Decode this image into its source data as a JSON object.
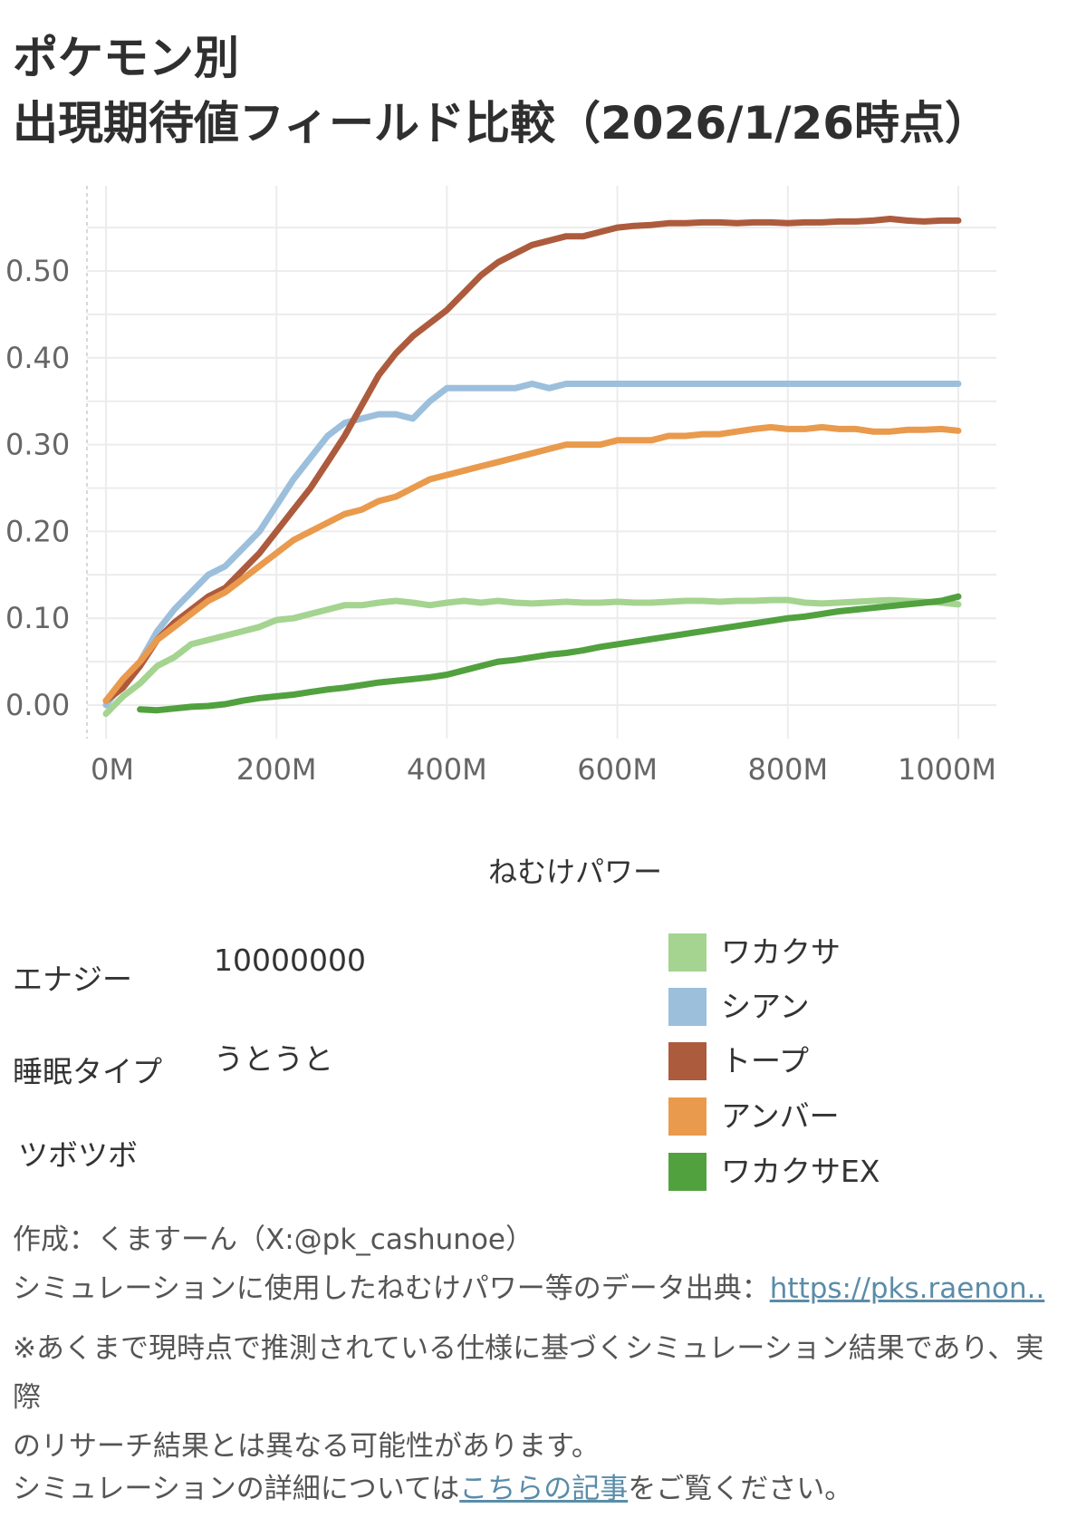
{
  "title": {
    "line1": "ポケモン別",
    "line2": "出現期待値フィールド比較（2026/1/26時点）"
  },
  "chart_data": {
    "type": "line",
    "title": "ポケモン別 出現期待値フィールド比較（2026/1/26時点）",
    "xlabel": "ねむけパワー",
    "ylabel": "",
    "xlim": [
      0,
      1000
    ],
    "ylim": [
      -0.03,
      0.58
    ],
    "x_unit": "M",
    "x_ticks": [
      "0M",
      "200M",
      "400M",
      "600M",
      "800M",
      "1000M"
    ],
    "y_ticks": [
      "0.00",
      "0.10",
      "0.20",
      "0.30",
      "0.40",
      "0.50"
    ],
    "grid": true,
    "series": [
      {
        "name": "ワカクサ",
        "color": "#a4d490",
        "x": [
          0,
          20,
          40,
          60,
          80,
          100,
          120,
          140,
          160,
          180,
          200,
          220,
          240,
          260,
          280,
          300,
          320,
          340,
          360,
          380,
          400,
          420,
          440,
          460,
          480,
          500,
          520,
          540,
          560,
          580,
          600,
          620,
          640,
          660,
          680,
          700,
          720,
          740,
          760,
          780,
          800,
          820,
          840,
          860,
          880,
          900,
          920,
          940,
          960,
          980,
          1000
        ],
        "y": [
          -0.01,
          0.01,
          0.025,
          0.045,
          0.055,
          0.07,
          0.075,
          0.08,
          0.085,
          0.09,
          0.098,
          0.1,
          0.105,
          0.11,
          0.115,
          0.115,
          0.118,
          0.12,
          0.118,
          0.115,
          0.118,
          0.12,
          0.118,
          0.12,
          0.118,
          0.117,
          0.118,
          0.119,
          0.118,
          0.118,
          0.119,
          0.118,
          0.118,
          0.119,
          0.12,
          0.12,
          0.119,
          0.12,
          0.12,
          0.121,
          0.121,
          0.118,
          0.117,
          0.118,
          0.119,
          0.12,
          0.121,
          0.12,
          0.119,
          0.118,
          0.116
        ]
      },
      {
        "name": "シアン",
        "color": "#9cbfdc",
        "x": [
          0,
          20,
          40,
          60,
          80,
          100,
          120,
          140,
          160,
          180,
          200,
          220,
          240,
          260,
          280,
          300,
          320,
          340,
          360,
          380,
          400,
          420,
          440,
          460,
          480,
          500,
          520,
          540,
          560,
          580,
          600,
          620,
          640,
          660,
          680,
          700,
          720,
          740,
          760,
          780,
          800,
          820,
          840,
          860,
          880,
          900,
          920,
          940,
          960,
          980,
          1000
        ],
        "y": [
          0.0,
          0.025,
          0.05,
          0.085,
          0.11,
          0.13,
          0.15,
          0.16,
          0.18,
          0.2,
          0.23,
          0.26,
          0.285,
          0.31,
          0.325,
          0.33,
          0.335,
          0.335,
          0.33,
          0.35,
          0.365,
          0.365,
          0.365,
          0.365,
          0.365,
          0.37,
          0.365,
          0.37,
          0.37,
          0.37,
          0.37,
          0.37,
          0.37,
          0.37,
          0.37,
          0.37,
          0.37,
          0.37,
          0.37,
          0.37,
          0.37,
          0.37,
          0.37,
          0.37,
          0.37,
          0.37,
          0.37,
          0.37,
          0.37,
          0.37,
          0.37
        ]
      },
      {
        "name": "トープ",
        "color": "#ad5b3d",
        "x": [
          0,
          20,
          40,
          60,
          80,
          100,
          120,
          140,
          160,
          180,
          200,
          220,
          240,
          260,
          280,
          300,
          320,
          340,
          360,
          380,
          400,
          420,
          440,
          460,
          480,
          500,
          520,
          540,
          560,
          580,
          600,
          620,
          640,
          660,
          680,
          700,
          720,
          740,
          760,
          780,
          800,
          820,
          840,
          860,
          880,
          900,
          920,
          940,
          960,
          980,
          1000
        ],
        "y": [
          0.005,
          0.02,
          0.045,
          0.075,
          0.095,
          0.11,
          0.125,
          0.135,
          0.155,
          0.175,
          0.2,
          0.225,
          0.25,
          0.28,
          0.31,
          0.345,
          0.38,
          0.405,
          0.425,
          0.44,
          0.455,
          0.475,
          0.495,
          0.51,
          0.52,
          0.53,
          0.535,
          0.54,
          0.54,
          0.545,
          0.55,
          0.552,
          0.553,
          0.555,
          0.555,
          0.556,
          0.556,
          0.555,
          0.556,
          0.556,
          0.555,
          0.556,
          0.556,
          0.557,
          0.557,
          0.558,
          0.56,
          0.558,
          0.557,
          0.558,
          0.558
        ]
      },
      {
        "name": "アンバー",
        "color": "#e99a4c",
        "x": [
          0,
          20,
          40,
          60,
          80,
          100,
          120,
          140,
          160,
          180,
          200,
          220,
          240,
          260,
          280,
          300,
          320,
          340,
          360,
          380,
          400,
          420,
          440,
          460,
          480,
          500,
          520,
          540,
          560,
          580,
          600,
          620,
          640,
          660,
          680,
          700,
          720,
          740,
          760,
          780,
          800,
          820,
          840,
          860,
          880,
          900,
          920,
          940,
          960,
          980,
          1000
        ],
        "y": [
          0.005,
          0.03,
          0.05,
          0.075,
          0.09,
          0.105,
          0.12,
          0.13,
          0.145,
          0.16,
          0.175,
          0.19,
          0.2,
          0.21,
          0.22,
          0.225,
          0.235,
          0.24,
          0.25,
          0.26,
          0.265,
          0.27,
          0.275,
          0.28,
          0.285,
          0.29,
          0.295,
          0.3,
          0.3,
          0.3,
          0.305,
          0.305,
          0.305,
          0.31,
          0.31,
          0.312,
          0.312,
          0.315,
          0.318,
          0.32,
          0.318,
          0.318,
          0.32,
          0.318,
          0.318,
          0.315,
          0.315,
          0.317,
          0.317,
          0.318,
          0.316
        ]
      },
      {
        "name": "ワカクサEX",
        "color": "#51a13f",
        "x": [
          40,
          60,
          80,
          100,
          120,
          140,
          160,
          180,
          200,
          220,
          240,
          260,
          280,
          300,
          320,
          340,
          360,
          380,
          400,
          420,
          440,
          460,
          480,
          500,
          520,
          540,
          560,
          580,
          600,
          620,
          640,
          660,
          680,
          700,
          720,
          740,
          760,
          780,
          800,
          820,
          840,
          860,
          880,
          900,
          920,
          940,
          960,
          980,
          1000
        ],
        "y": [
          -0.005,
          -0.006,
          -0.004,
          -0.002,
          -0.001,
          0.001,
          0.005,
          0.008,
          0.01,
          0.012,
          0.015,
          0.018,
          0.02,
          0.023,
          0.026,
          0.028,
          0.03,
          0.032,
          0.035,
          0.04,
          0.045,
          0.05,
          0.052,
          0.055,
          0.058,
          0.06,
          0.063,
          0.067,
          0.07,
          0.073,
          0.076,
          0.079,
          0.082,
          0.085,
          0.088,
          0.091,
          0.094,
          0.097,
          0.1,
          0.102,
          0.105,
          0.108,
          0.11,
          0.112,
          0.114,
          0.116,
          0.118,
          0.12,
          0.125
        ]
      }
    ]
  },
  "params": {
    "energy_label": "エナジー",
    "energy_value": "10000000",
    "sleep_type_label": "睡眠タイプ",
    "sleep_type_value": "うとうと",
    "tsubotsubo_label": "ツボツボ"
  },
  "legend": [
    {
      "label": "ワカクサ",
      "color": "#a4d490"
    },
    {
      "label": "シアン",
      "color": "#9cbfdc"
    },
    {
      "label": "トープ",
      "color": "#ad5b3d"
    },
    {
      "label": "アンバー",
      "color": "#e99a4c"
    },
    {
      "label": "ワカクサEX",
      "color": "#51a13f"
    }
  ],
  "footer": {
    "author": "作成：くますーん（X:@pk_cashunoe）",
    "source_prefix": "シミュレーションに使用したねむけパワー等のデータ出典：",
    "source_link": "https://pks.raenon..",
    "disclaimer_line1": "※あくまで現時点で推測されている仕様に基づくシミュレーション結果であり、実際",
    "disclaimer_line2": "のリサーチ結果とは異なる可能性があります。",
    "details_prefix": "シミュレーションの詳細については",
    "details_link": "こちらの記事",
    "details_suffix": "をご覧ください。"
  }
}
